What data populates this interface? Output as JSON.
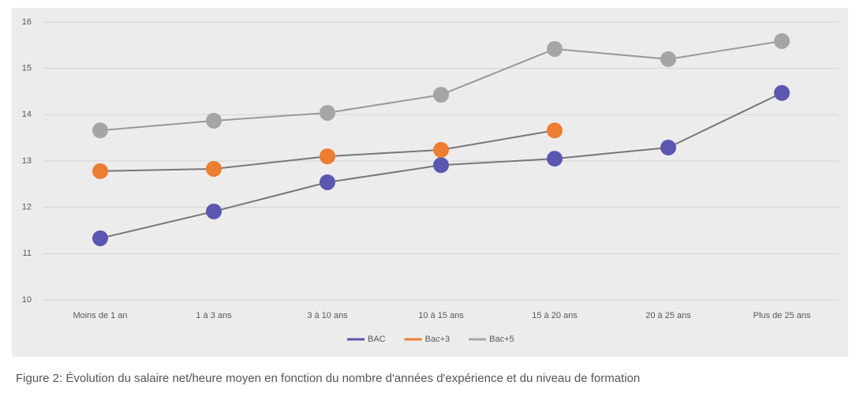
{
  "chart_data": {
    "type": "line",
    "categories": [
      "Moins de 1 an",
      "1 à 3 ans",
      "3 à 10 ans",
      "10 à 15 ans",
      "15 à 20 ans",
      "20 à 25 ans",
      "Plus de 25 ans"
    ],
    "series": [
      {
        "name": "BAC",
        "color": "#5b57b0",
        "values": [
          11.33,
          11.91,
          12.54,
          12.91,
          13.05,
          13.29,
          14.47
        ]
      },
      {
        "name": "Bac+3",
        "color": "#ed7d31",
        "values": [
          12.78,
          12.83,
          13.1,
          13.24,
          13.66,
          null,
          null
        ]
      },
      {
        "name": "Bac+5",
        "color": "#a5a5a5",
        "values": [
          13.66,
          13.87,
          14.04,
          14.43,
          15.42,
          15.2,
          15.59
        ]
      }
    ],
    "ylim": [
      10,
      16
    ],
    "yticks": [
      10,
      11,
      12,
      13,
      14,
      15,
      16
    ],
    "grid": true,
    "caption": "Figure 2: Évolution du salaire net/heure moyen en fonction du nombre d'années d'expérience et du niveau de formation"
  }
}
